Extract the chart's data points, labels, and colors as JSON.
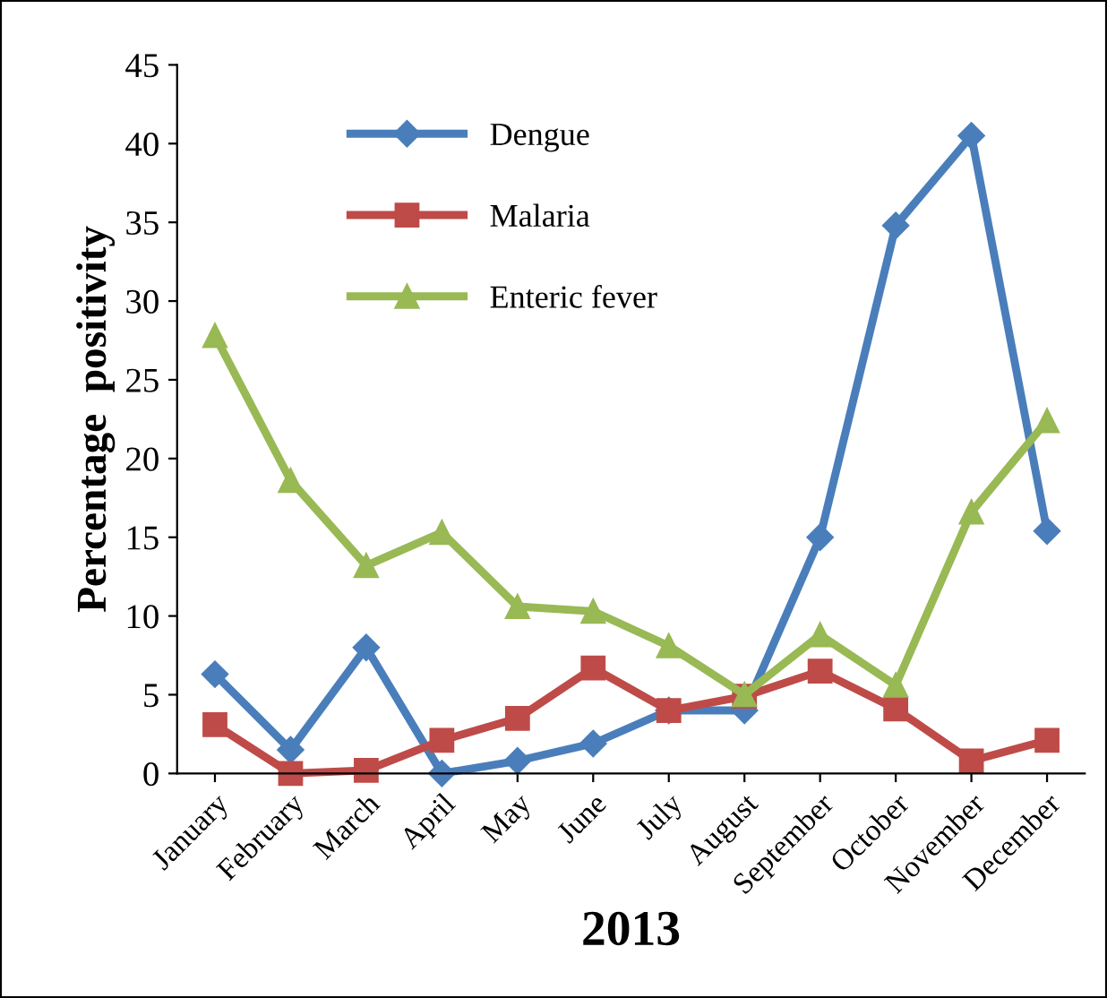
{
  "chart_data": {
    "type": "line",
    "xlabel": "2013",
    "ylabel": "Percentage  positivity",
    "categories": [
      "January",
      "February",
      "March",
      "April",
      "May",
      "June",
      "July",
      "August",
      "September",
      "October",
      "November",
      "December"
    ],
    "series": [
      {
        "name": "Dengue",
        "color": "#4a7ebb",
        "marker": "diamond",
        "values": [
          6.3,
          1.5,
          8.0,
          0,
          0.8,
          1.9,
          4.0,
          4.0,
          15.0,
          34.8,
          40.5,
          15.4
        ]
      },
      {
        "name": "Malaria",
        "color": "#be4b48",
        "marker": "square",
        "values": [
          3.1,
          0,
          0.2,
          2.1,
          3.5,
          6.7,
          4.0,
          4.9,
          6.5,
          4.1,
          0.8,
          2.1
        ]
      },
      {
        "name": "Enteric fever",
        "color": "#98b954",
        "marker": "triangle",
        "values": [
          27.8,
          18.6,
          13.2,
          15.3,
          10.6,
          10.3,
          8.1,
          5.0,
          8.8,
          5.6,
          16.6,
          22.4
        ]
      }
    ],
    "ylim": [
      0,
      45
    ],
    "yticks": [
      0,
      5,
      10,
      15,
      20,
      25,
      30,
      35,
      40,
      45
    ],
    "grid": false,
    "legend": "top",
    "line_style": "solid"
  }
}
